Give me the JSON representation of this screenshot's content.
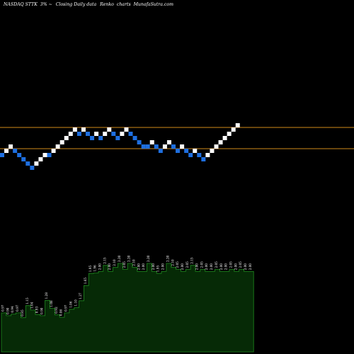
{
  "header": {
    "symbol": "NASDAQ STTK",
    "change": "3% ~",
    "description": "Closing Daily data",
    "chart_kind": "Renko",
    "suffix": "charts",
    "site": "MunafaSutra.com"
  },
  "colors": {
    "background": "#000000",
    "up_brick": "#ffffff",
    "down_brick": "#1e6fe0",
    "reference_line": "#d08a1a",
    "volume_fill": "#062a06",
    "volume_line": "#1f8a1f",
    "text": "#ffffff"
  },
  "chart_data": [
    {
      "type": "renko",
      "title": "NASDAQ STTK 3% ~ Closing Daily data Renko charts",
      "reference_lines": [
        "upper",
        "lower"
      ],
      "bricks": [
        {
          "level": 0,
          "dir": "down"
        },
        {
          "level": 1,
          "dir": "up"
        },
        {
          "level": 2,
          "dir": "up"
        },
        {
          "level": 1,
          "dir": "down"
        },
        {
          "level": 0,
          "dir": "down"
        },
        {
          "level": -1,
          "dir": "down"
        },
        {
          "level": -2,
          "dir": "down"
        },
        {
          "level": -3,
          "dir": "down"
        },
        {
          "level": -2,
          "dir": "up"
        },
        {
          "level": -1,
          "dir": "up"
        },
        {
          "level": 0,
          "dir": "up"
        },
        {
          "level": 0,
          "dir": "down"
        },
        {
          "level": 1,
          "dir": "up"
        },
        {
          "level": 2,
          "dir": "up"
        },
        {
          "level": 3,
          "dir": "up"
        },
        {
          "level": 4,
          "dir": "up"
        },
        {
          "level": 5,
          "dir": "up"
        },
        {
          "level": 6,
          "dir": "up"
        },
        {
          "level": 5,
          "dir": "down"
        },
        {
          "level": 6,
          "dir": "up"
        },
        {
          "level": 5,
          "dir": "down"
        },
        {
          "level": 4,
          "dir": "down"
        },
        {
          "level": 5,
          "dir": "up"
        },
        {
          "level": 4,
          "dir": "down"
        },
        {
          "level": 5,
          "dir": "up"
        },
        {
          "level": 6,
          "dir": "up"
        },
        {
          "level": 5,
          "dir": "down"
        },
        {
          "level": 4,
          "dir": "down"
        },
        {
          "level": 5,
          "dir": "up"
        },
        {
          "level": 6,
          "dir": "up"
        },
        {
          "level": 5,
          "dir": "down"
        },
        {
          "level": 4,
          "dir": "down"
        },
        {
          "level": 3,
          "dir": "down"
        },
        {
          "level": 2,
          "dir": "down"
        },
        {
          "level": 2,
          "dir": "down"
        },
        {
          "level": 3,
          "dir": "up"
        },
        {
          "level": 2,
          "dir": "down"
        },
        {
          "level": 1,
          "dir": "down"
        },
        {
          "level": 2,
          "dir": "up"
        },
        {
          "level": 3,
          "dir": "up"
        },
        {
          "level": 2,
          "dir": "down"
        },
        {
          "level": 1,
          "dir": "down"
        },
        {
          "level": 2,
          "dir": "up"
        },
        {
          "level": 1,
          "dir": "down"
        },
        {
          "level": 0,
          "dir": "down"
        },
        {
          "level": 1,
          "dir": "up"
        },
        {
          "level": 0,
          "dir": "down"
        },
        {
          "level": -1,
          "dir": "down"
        },
        {
          "level": 0,
          "dir": "up"
        },
        {
          "level": 1,
          "dir": "up"
        },
        {
          "level": 2,
          "dir": "up"
        },
        {
          "level": 3,
          "dir": "up"
        },
        {
          "level": 4,
          "dir": "up"
        },
        {
          "level": 5,
          "dir": "up"
        },
        {
          "level": 6,
          "dir": "up"
        },
        {
          "level": 7,
          "dir": "up"
        }
      ]
    },
    {
      "type": "area",
      "series_role": "volume",
      "values": [
        0.97,
        0.9,
        0.94,
        0.97,
        0.85,
        1.15,
        1.04,
        0.93,
        0.9,
        1.28,
        1.08,
        0.92,
        0.86,
        0.97,
        1.06,
        1.1,
        1.27,
        1.65,
        1.95,
        1.96,
        2.0,
        2.15,
        2.0,
        2.1,
        2.2,
        2.05,
        2.2,
        2.1,
        2.0,
        2.0,
        2.2,
        2.0,
        1.95,
        2.0,
        2.2,
        2.1,
        2.05,
        2.0,
        2.05,
        2.15,
        2.0,
        2.05,
        2.0,
        2.0,
        2.05,
        2.0,
        2.0,
        2.05,
        2.0,
        2.05,
        2.0,
        2.0
      ],
      "labels": [
        "0.97",
        "0.90",
        "0.94",
        "0.97",
        "0.85",
        "1.15",
        "1.04",
        "0.93",
        "0.90",
        "1.28",
        "1.08",
        "0.92",
        "0.86",
        "0.97",
        "1.06",
        "1.10",
        "1.27",
        "1.65",
        "1.95",
        "1.96",
        "2.00",
        "2.15",
        "2.00",
        "2.10",
        "2.20",
        "2.05",
        "2.20",
        "2.10",
        "2.00",
        "2.00",
        "2.20",
        "2.00",
        "1.95",
        "2.00",
        "2.20",
        "2.10",
        "2.05",
        "2.00",
        "2.05",
        "2.15",
        "2.00",
        "2.05",
        "2.00",
        "2.00",
        "2.05",
        "2.00",
        "2.00",
        "2.05",
        "2.00",
        "2.05",
        "2.00",
        "2.00"
      ]
    }
  ]
}
